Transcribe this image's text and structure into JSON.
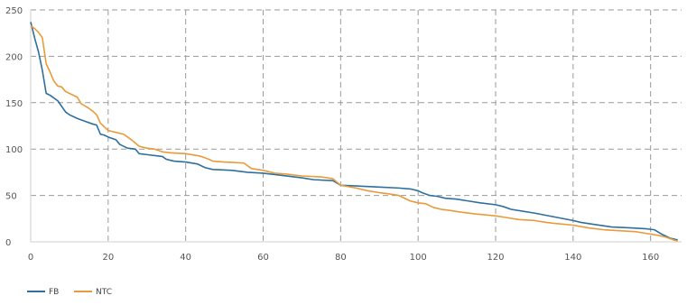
{
  "chart_data": {
    "type": "line",
    "xlim": [
      0,
      168
    ],
    "ylim": [
      0,
      250
    ],
    "x_ticks": [
      0,
      20,
      40,
      60,
      80,
      100,
      120,
      140,
      160
    ],
    "y_ticks": [
      0,
      50,
      100,
      150,
      200,
      250
    ],
    "grid": true,
    "legend_position": "bottom-left",
    "series": [
      {
        "name": "FB",
        "color": "#2e6f9e",
        "points": [
          [
            0,
            237
          ],
          [
            1,
            220
          ],
          [
            2,
            205
          ],
          [
            3,
            185
          ],
          [
            4,
            160
          ],
          [
            5,
            158
          ],
          [
            7,
            152
          ],
          [
            9,
            140
          ],
          [
            10,
            137
          ],
          [
            12,
            133
          ],
          [
            14,
            130
          ],
          [
            16,
            127
          ],
          [
            17,
            126
          ],
          [
            18,
            116
          ],
          [
            19,
            115
          ],
          [
            20,
            113
          ],
          [
            22,
            110
          ],
          [
            23,
            105
          ],
          [
            25,
            101
          ],
          [
            27,
            100
          ],
          [
            28,
            95
          ],
          [
            30,
            94
          ],
          [
            34,
            92
          ],
          [
            35,
            89
          ],
          [
            36,
            88
          ],
          [
            37,
            87
          ],
          [
            40,
            86
          ],
          [
            43,
            84
          ],
          [
            45,
            80
          ],
          [
            47,
            78
          ],
          [
            52,
            77
          ],
          [
            56,
            75
          ],
          [
            60,
            74
          ],
          [
            64,
            72
          ],
          [
            70,
            69
          ],
          [
            73,
            67
          ],
          [
            78,
            66
          ],
          [
            80,
            61
          ],
          [
            90,
            59
          ],
          [
            95,
            58
          ],
          [
            98,
            57
          ],
          [
            100,
            55
          ],
          [
            101,
            53
          ],
          [
            103,
            50
          ],
          [
            105,
            49
          ],
          [
            107,
            47
          ],
          [
            110,
            46
          ],
          [
            113,
            44
          ],
          [
            116,
            42
          ],
          [
            120,
            40
          ],
          [
            122,
            38
          ],
          [
            124,
            35
          ],
          [
            127,
            33
          ],
          [
            130,
            31
          ],
          [
            135,
            27
          ],
          [
            140,
            23
          ],
          [
            142,
            21
          ],
          [
            145,
            19
          ],
          [
            150,
            16
          ],
          [
            155,
            15
          ],
          [
            159,
            14
          ],
          [
            161,
            13
          ],
          [
            163,
            8
          ],
          [
            165,
            4
          ],
          [
            167,
            2
          ]
        ]
      },
      {
        "name": "NTC",
        "color": "#e89b3a",
        "points": [
          [
            0,
            233
          ],
          [
            1,
            230
          ],
          [
            2,
            226
          ],
          [
            3,
            220
          ],
          [
            4,
            192
          ],
          [
            5,
            183
          ],
          [
            6,
            173
          ],
          [
            7,
            168
          ],
          [
            8,
            167
          ],
          [
            9,
            162
          ],
          [
            10,
            160
          ],
          [
            12,
            156
          ],
          [
            13,
            149
          ],
          [
            15,
            144
          ],
          [
            16,
            141
          ],
          [
            17,
            137
          ],
          [
            18,
            128
          ],
          [
            19,
            124
          ],
          [
            20,
            120
          ],
          [
            22,
            118
          ],
          [
            24,
            116
          ],
          [
            26,
            110
          ],
          [
            28,
            103
          ],
          [
            30,
            101
          ],
          [
            32,
            100
          ],
          [
            34,
            97
          ],
          [
            36,
            96
          ],
          [
            40,
            95
          ],
          [
            43,
            93
          ],
          [
            44,
            92
          ],
          [
            46,
            89
          ],
          [
            47,
            87
          ],
          [
            50,
            86
          ],
          [
            55,
            85
          ],
          [
            57,
            79
          ],
          [
            60,
            77
          ],
          [
            63,
            74
          ],
          [
            66,
            73
          ],
          [
            70,
            71
          ],
          [
            75,
            70
          ],
          [
            78,
            68
          ],
          [
            80,
            61
          ],
          [
            84,
            58
          ],
          [
            87,
            55
          ],
          [
            90,
            53
          ],
          [
            92,
            52
          ],
          [
            95,
            50
          ],
          [
            98,
            44
          ],
          [
            100,
            42
          ],
          [
            102,
            41
          ],
          [
            104,
            37
          ],
          [
            106,
            35
          ],
          [
            108,
            34
          ],
          [
            111,
            32
          ],
          [
            115,
            30
          ],
          [
            120,
            28
          ],
          [
            123,
            26
          ],
          [
            126,
            24
          ],
          [
            130,
            23
          ],
          [
            133,
            21
          ],
          [
            135,
            20
          ],
          [
            140,
            18
          ],
          [
            144,
            15
          ],
          [
            148,
            13
          ],
          [
            152,
            12
          ],
          [
            156,
            11
          ],
          [
            159,
            9
          ],
          [
            162,
            7
          ],
          [
            164,
            5
          ],
          [
            166,
            2
          ],
          [
            167,
            1
          ]
        ]
      }
    ]
  }
}
